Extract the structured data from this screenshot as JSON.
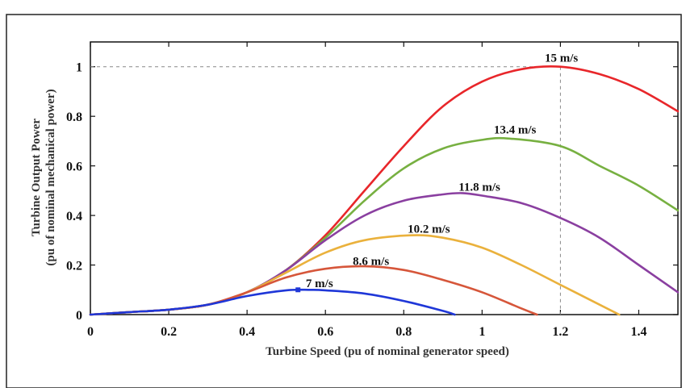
{
  "chart_data": {
    "type": "line",
    "xlabel": "Turbine Speed (pu of nominal generator speed)",
    "ylabel_line1": "Turbine Output Power",
    "ylabel_line2": "(pu of nominal mechanical power)",
    "xlim": [
      0,
      1.5
    ],
    "ylim": [
      0,
      1.1
    ],
    "x_ticks": [
      0,
      0.2,
      0.4,
      0.6,
      0.8,
      1,
      1.2,
      1.4
    ],
    "x_tick_labels": [
      "0",
      "0.2",
      "0.4",
      "0.6",
      "0.8",
      "1",
      "1.2",
      "1.4"
    ],
    "y_ticks": [
      0,
      0.2,
      0.4,
      0.6,
      0.8,
      1
    ],
    "y_tick_labels": [
      "0",
      "0.2",
      "0.4",
      "0.6",
      "0.8",
      "1"
    ],
    "reference_lines": {
      "y": 1.0,
      "x": 1.2
    },
    "series": [
      {
        "name": "15 m/s",
        "color": "#e8262a",
        "x": [
          0,
          0.1,
          0.2,
          0.3,
          0.4,
          0.5,
          0.6,
          0.7,
          0.8,
          0.9,
          1.0,
          1.1,
          1.2,
          1.3,
          1.4,
          1.5
        ],
        "y": [
          0,
          0.01,
          0.02,
          0.04,
          0.09,
          0.18,
          0.32,
          0.5,
          0.68,
          0.84,
          0.94,
          0.99,
          1.0,
          0.97,
          0.91,
          0.82
        ]
      },
      {
        "name": "13.4 m/s",
        "color": "#77b041",
        "x": [
          0,
          0.1,
          0.2,
          0.3,
          0.4,
          0.5,
          0.6,
          0.7,
          0.8,
          0.9,
          1.0,
          1.07,
          1.2,
          1.3,
          1.4,
          1.5
        ],
        "y": [
          0,
          0.01,
          0.02,
          0.04,
          0.09,
          0.18,
          0.31,
          0.46,
          0.59,
          0.67,
          0.705,
          0.71,
          0.68,
          0.6,
          0.52,
          0.42
        ]
      },
      {
        "name": "11.8 m/s",
        "color": "#8a3fa0",
        "x": [
          0,
          0.1,
          0.2,
          0.3,
          0.4,
          0.5,
          0.6,
          0.7,
          0.8,
          0.9,
          0.95,
          1.0,
          1.1,
          1.2,
          1.3,
          1.4,
          1.5
        ],
        "y": [
          0,
          0.01,
          0.02,
          0.04,
          0.09,
          0.18,
          0.3,
          0.4,
          0.46,
          0.485,
          0.49,
          0.48,
          0.45,
          0.39,
          0.31,
          0.2,
          0.09
        ]
      },
      {
        "name": "10.2 m/s",
        "color": "#eab13c",
        "x": [
          0,
          0.1,
          0.2,
          0.3,
          0.4,
          0.5,
          0.6,
          0.7,
          0.82,
          0.9,
          1.0,
          1.1,
          1.2,
          1.3,
          1.35
        ],
        "y": [
          0,
          0.01,
          0.02,
          0.04,
          0.09,
          0.17,
          0.25,
          0.3,
          0.32,
          0.31,
          0.27,
          0.2,
          0.12,
          0.04,
          0
        ]
      },
      {
        "name": "8.6 m/s",
        "color": "#d6563a",
        "x": [
          0,
          0.1,
          0.2,
          0.3,
          0.4,
          0.5,
          0.6,
          0.7,
          0.8,
          0.9,
          1.0,
          1.1,
          1.14
        ],
        "y": [
          0,
          0.01,
          0.02,
          0.04,
          0.09,
          0.15,
          0.185,
          0.195,
          0.18,
          0.14,
          0.09,
          0.025,
          0
        ]
      },
      {
        "name": "7 m/s",
        "color": "#1f37d8",
        "x": [
          0,
          0.1,
          0.2,
          0.3,
          0.4,
          0.5,
          0.56,
          0.6,
          0.7,
          0.8,
          0.9,
          0.93
        ],
        "y": [
          0,
          0.01,
          0.02,
          0.04,
          0.075,
          0.098,
          0.1,
          0.098,
          0.085,
          0.055,
          0.015,
          0
        ]
      }
    ],
    "annotations": [
      {
        "text": "15 m/s",
        "x": 1.16,
        "y": 1.02
      },
      {
        "text": "13.4 m/s",
        "x": 1.03,
        "y": 0.73
      },
      {
        "text": "11.8 m/s",
        "x": 0.94,
        "y": 0.5
      },
      {
        "text": "10.2 m/s",
        "x": 0.81,
        "y": 0.33
      },
      {
        "text": "8.6 m/s",
        "x": 0.67,
        "y": 0.2
      },
      {
        "text": "7 m/s",
        "x": 0.55,
        "y": 0.11
      }
    ],
    "markers": [
      {
        "x": 0.53,
        "y": 0.1,
        "color": "#1f37d8"
      }
    ],
    "grid": false
  }
}
